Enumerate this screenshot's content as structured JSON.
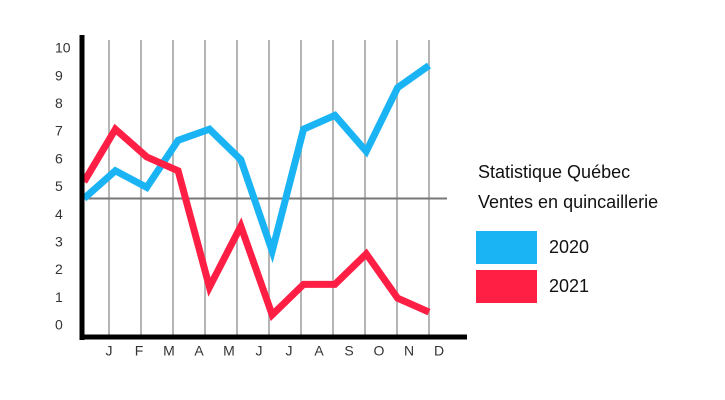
{
  "chart_data": {
    "type": "line",
    "title": "Statistique Québec",
    "subtitle": "Ventes en quincaillerie",
    "categories": [
      "J",
      "F",
      "M",
      "A",
      "M",
      "J",
      "J",
      "A",
      "S",
      "O",
      "N",
      "D"
    ],
    "series": [
      {
        "name": "2020",
        "color": "#1ab4f5",
        "values": [
          4.6,
          5.6,
          5.0,
          6.7,
          7.1,
          6.0,
          2.7,
          7.1,
          7.6,
          6.3,
          8.6,
          9.4
        ]
      },
      {
        "name": "2021",
        "color": "#ff1f45",
        "values": [
          5.2,
          7.1,
          6.1,
          5.6,
          1.4,
          3.6,
          0.4,
          1.5,
          1.5,
          2.6,
          1.0,
          0.5
        ]
      }
    ],
    "ylim": [
      -0.4,
      10.5
    ],
    "yticks": [
      0,
      1,
      2,
      3,
      4,
      5,
      6,
      7,
      8,
      9,
      10
    ],
    "hline": 4.6,
    "grid": true
  }
}
